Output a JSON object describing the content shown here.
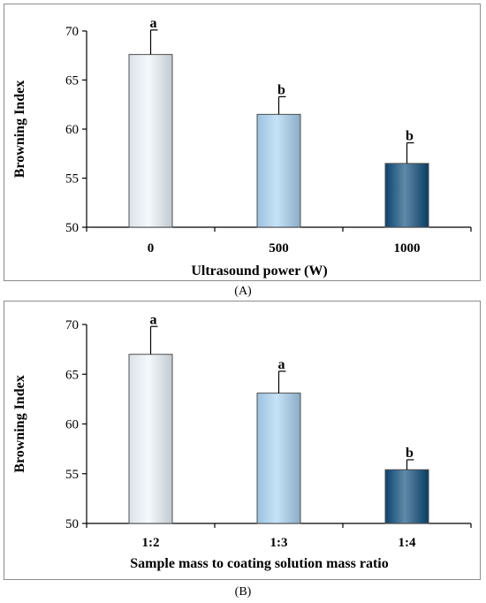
{
  "chart_data": [
    {
      "type": "bar",
      "panel_label": "(A)",
      "categories": [
        "0",
        "500",
        "1000"
      ],
      "values": [
        67.6,
        61.5,
        56.5
      ],
      "errors": [
        2.5,
        1.8,
        2.1
      ],
      "significance": [
        "a",
        "b",
        "b"
      ],
      "bar_colors": [
        "#eef6fd",
        "#a7d3f3",
        "#0b4a7a"
      ],
      "xlabel": "Ultrasound power (W)",
      "ylabel": "Browning Index",
      "ylim": [
        50,
        70
      ],
      "yticks": [
        50,
        55,
        60,
        65,
        70
      ],
      "grid": false,
      "legend": "none"
    },
    {
      "type": "bar",
      "panel_label": "(B)",
      "categories": [
        "1:2",
        "1:3",
        "1:4"
      ],
      "values": [
        67.0,
        63.1,
        55.4
      ],
      "errors": [
        2.8,
        2.2,
        1.0
      ],
      "significance": [
        "a",
        "a",
        "b"
      ],
      "bar_colors": [
        "#eef6fd",
        "#a7d3f3",
        "#0b4a7a"
      ],
      "xlabel": "Sample mass to coating solution mass ratio",
      "ylabel": "Browning Index",
      "ylim": [
        50,
        70
      ],
      "yticks": [
        50,
        55,
        60,
        65,
        70
      ],
      "grid": false,
      "legend": "none"
    }
  ],
  "colors": {
    "axis": "#000000",
    "frame": "#8c8c8c",
    "bar_border": "#4d4d4d"
  }
}
